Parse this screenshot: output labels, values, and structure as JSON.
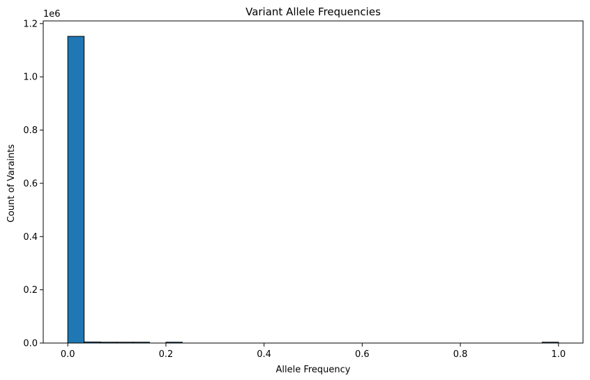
{
  "chart_data": {
    "type": "bar",
    "title": "Variant Allele Frequencies",
    "xlabel": "Allele Frequency",
    "ylabel": "Count of Varaints",
    "y_offset_label": "1e6",
    "xlim": [
      -0.05,
      1.05
    ],
    "ylim": [
      0,
      1.21
    ],
    "bin_width": 0.03333,
    "bar_color": "#1f77b4",
    "edge_color": "#000000",
    "grid": false,
    "legend": "none",
    "x_ticks": [
      {
        "value": 0.0,
        "label": "0.0"
      },
      {
        "value": 0.2,
        "label": "0.2"
      },
      {
        "value": 0.4,
        "label": "0.4"
      },
      {
        "value": 0.6,
        "label": "0.6"
      },
      {
        "value": 0.8,
        "label": "0.8"
      },
      {
        "value": 1.0,
        "label": "1.0"
      }
    ],
    "y_ticks": [
      {
        "value": 0.0,
        "label": "0.0"
      },
      {
        "value": 0.2,
        "label": "0.2"
      },
      {
        "value": 0.4,
        "label": "0.4"
      },
      {
        "value": 0.6,
        "label": "0.6"
      },
      {
        "value": 0.8,
        "label": "0.8"
      },
      {
        "value": 1.0,
        "label": "1.0"
      },
      {
        "value": 1.2,
        "label": "1.2"
      }
    ],
    "bins": [
      {
        "start": 0.0,
        "value": 1.152
      },
      {
        "start": 0.03333,
        "value": 0.004
      },
      {
        "start": 0.06667,
        "value": 0.003
      },
      {
        "start": 0.1,
        "value": 0.003
      },
      {
        "start": 0.13333,
        "value": 0.002
      },
      {
        "start": 0.2,
        "value": 0.002
      },
      {
        "start": 0.96667,
        "value": 0.002
      }
    ]
  }
}
